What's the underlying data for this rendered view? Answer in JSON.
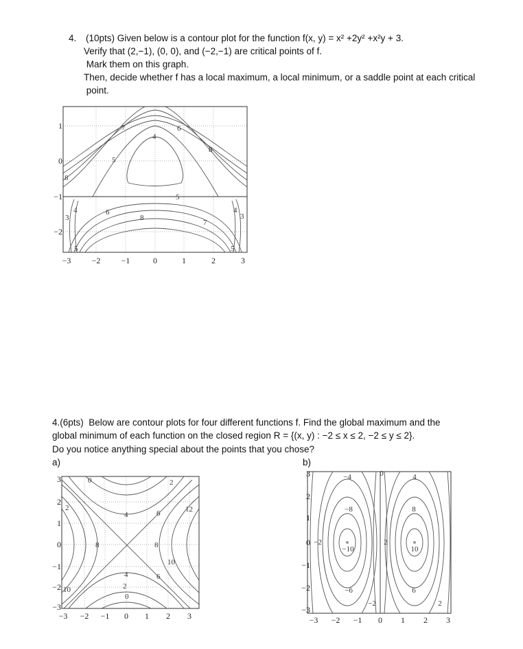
{
  "problem1": {
    "number": "4.",
    "lines": [
      "(10pts) Given below is a contour plot for the function f(x, y) = x² +2y² +x²y + 3.",
      "Verify that (2,−1), (0, 0), and (−2,−1) are critical points of f.",
      " Mark them on this graph.",
      "Then, decide whether f has a local maximum, a local minimum, or a saddle point at each critical",
      " point."
    ]
  },
  "plot1": {
    "xticks": [
      "−3",
      "−2",
      "−1",
      "0",
      "1",
      "2",
      "3"
    ],
    "yticks": [
      "1",
      "0",
      "−1",
      "−2"
    ],
    "contour_labels": [
      "7",
      "4",
      "6",
      "5",
      "8",
      "8",
      "5",
      "4",
      "3",
      "6",
      "8",
      "7",
      "4",
      "3",
      "5",
      "5"
    ]
  },
  "problem2": {
    "lines": [
      "4.(6pts)  Below are contour plots for four different functions f. Find the global maximum and the",
      "global minimum of each function on the closed region R = {(x, y) : −2 ≤ x ≤ 2, −2 ≤ y ≤ 2}.",
      "Do you notice anything special about the points that you chose?"
    ]
  },
  "plot_a": {
    "label": "a)",
    "xticks": [
      "−3",
      "−2",
      "−1",
      "0",
      "1",
      "2",
      "3"
    ],
    "yticks": [
      "3",
      "2",
      "1",
      "0",
      "−1",
      "−2",
      "−3"
    ],
    "contour_labels": [
      "0",
      "2",
      "2",
      "4",
      "6",
      "12",
      "8",
      "8",
      "10",
      "4",
      "6",
      "2",
      "0",
      "10"
    ]
  },
  "plot_b": {
    "label": "b)",
    "xticks": [
      "−3",
      "−2",
      "−1",
      "0",
      "1",
      "2",
      "3"
    ],
    "yticks": [
      "3",
      "2",
      "1",
      "0",
      "−1",
      "−2",
      "−3"
    ],
    "contour_labels": [
      "−4",
      "0",
      "4",
      "−8",
      "8",
      "−2",
      "−10",
      "2",
      "10",
      "−6",
      "6",
      "−2",
      "2"
    ]
  }
}
